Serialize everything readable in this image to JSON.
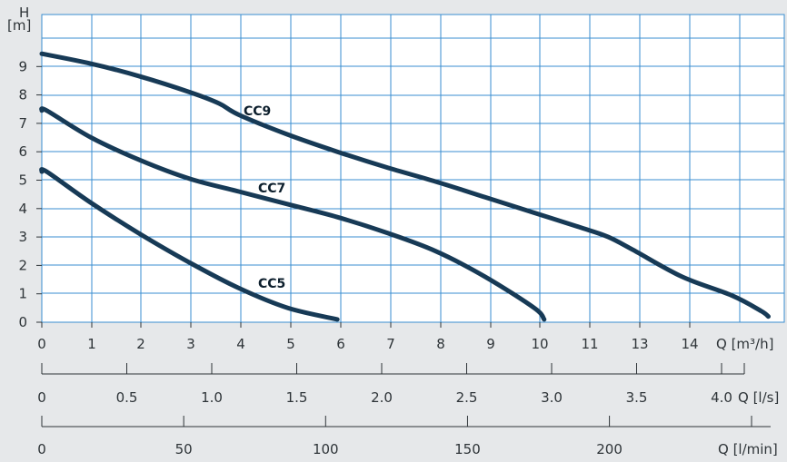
{
  "chart_data": {
    "type": "line",
    "y_axis": {
      "label": "H",
      "unit": "[m]",
      "ticks": [
        "0",
        "1",
        "2",
        "3",
        "4",
        "5",
        "6",
        "7",
        "8",
        "9"
      ],
      "range": [
        0,
        10.5
      ]
    },
    "x_axes": [
      {
        "name": "flow_m3h",
        "unit": "Q [m³/h]",
        "ticks": [
          "0",
          "1",
          "2",
          "3",
          "4",
          "5",
          "6",
          "7",
          "8",
          "9",
          "10",
          "11",
          "13",
          "14"
        ],
        "range": [
          0,
          15.3
        ]
      },
      {
        "name": "flow_ls",
        "unit": "Q [l/s]",
        "ticks": [
          "0",
          "0.5",
          "1.0",
          "1.5",
          "2.0",
          "2.5",
          "3.0",
          "3.5",
          "4.0"
        ],
        "range": [
          0,
          4.25
        ]
      },
      {
        "name": "flow_lmin",
        "unit": "Q [l/min]",
        "ticks": [
          "0",
          "50",
          "100",
          "150",
          "200"
        ],
        "range": [
          0,
          255
        ]
      }
    ],
    "grid": true,
    "colors": {
      "curve": "#173a56",
      "grid": "#3a8ed0",
      "background": "#e6e8ea",
      "plot": "#ffffff"
    },
    "series": [
      {
        "name": "CC5",
        "x": [
          0,
          0.1,
          1.0,
          2.0,
          3.0,
          4.0,
          5.0,
          6.0
        ],
        "y": [
          5.3,
          5.3,
          4.2,
          3.1,
          2.1,
          1.2,
          0.5,
          0.1
        ]
      },
      {
        "name": "CC7",
        "x": [
          0,
          0.1,
          1.0,
          2.0,
          3.0,
          4.0,
          5.0,
          6.0,
          7.0,
          8.0,
          9.0,
          10.0,
          10.2
        ],
        "y": [
          7.45,
          7.45,
          6.5,
          5.7,
          5.05,
          4.6,
          4.15,
          3.7,
          3.15,
          2.5,
          1.6,
          0.5,
          0.1
        ]
      },
      {
        "name": "CC9",
        "x": [
          0,
          1.0,
          2.0,
          3.0,
          3.6,
          4.0,
          5.0,
          6.0,
          7.0,
          8.0,
          9.0,
          10.0,
          11.0,
          11.5,
          12.0,
          13.0,
          14.0,
          14.6,
          14.75
        ],
        "y": [
          9.45,
          9.1,
          8.65,
          8.1,
          7.7,
          7.3,
          6.6,
          6.0,
          5.45,
          4.95,
          4.4,
          3.85,
          3.3,
          3.0,
          2.55,
          1.6,
          0.95,
          0.4,
          0.2
        ]
      }
    ]
  }
}
